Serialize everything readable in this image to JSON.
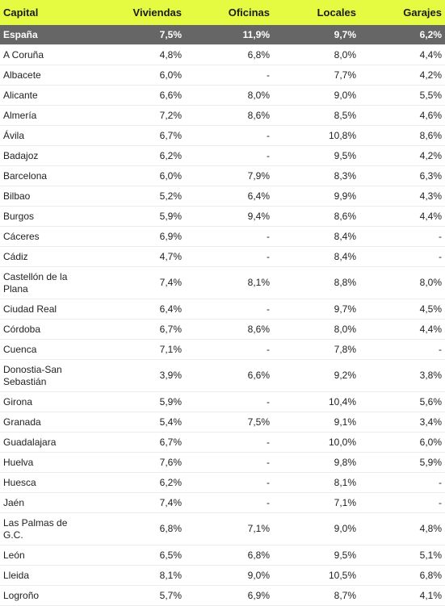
{
  "headers": [
    "Capital",
    "Viviendas",
    "Oficinas",
    "Locales",
    "Garajes"
  ],
  "total": {
    "name": "España",
    "values": [
      "7,5%",
      "11,9%",
      "9,7%",
      "6,2%"
    ]
  },
  "rows": [
    {
      "name": "A Coruña",
      "values": [
        "4,8%",
        "6,8%",
        "8,0%",
        "4,4%"
      ]
    },
    {
      "name": "Albacete",
      "values": [
        "6,0%",
        "-",
        "7,7%",
        "4,2%"
      ]
    },
    {
      "name": "Alicante",
      "values": [
        "6,6%",
        "8,0%",
        "9,0%",
        "5,5%"
      ]
    },
    {
      "name": "Almería",
      "values": [
        "7,2%",
        "8,6%",
        "8,5%",
        "4,6%"
      ]
    },
    {
      "name": "Ávila",
      "values": [
        "6,7%",
        "-",
        "10,8%",
        "8,6%"
      ]
    },
    {
      "name": "Badajoz",
      "values": [
        "6,2%",
        "-",
        "9,5%",
        "4,2%"
      ]
    },
    {
      "name": "Barcelona",
      "values": [
        "6,0%",
        "7,9%",
        "8,3%",
        "6,3%"
      ]
    },
    {
      "name": "Bilbao",
      "values": [
        "5,2%",
        "6,4%",
        "9,9%",
        "4,3%"
      ]
    },
    {
      "name": "Burgos",
      "values": [
        "5,9%",
        "9,4%",
        "8,6%",
        "4,4%"
      ]
    },
    {
      "name": "Cáceres",
      "values": [
        "6,9%",
        "-",
        "8,4%",
        "-"
      ]
    },
    {
      "name": "Cádiz",
      "values": [
        "4,7%",
        "-",
        "8,4%",
        "-"
      ]
    },
    {
      "name": "Castellón de la Plana",
      "values": [
        "7,4%",
        "8,1%",
        "8,8%",
        "8,0%"
      ]
    },
    {
      "name": "Ciudad Real",
      "values": [
        "6,4%",
        "-",
        "9,7%",
        "4,5%"
      ]
    },
    {
      "name": "Córdoba",
      "values": [
        "6,7%",
        "8,6%",
        "8,0%",
        "4,4%"
      ]
    },
    {
      "name": "Cuenca",
      "values": [
        "7,1%",
        "-",
        "7,8%",
        "-"
      ]
    },
    {
      "name": "Donostia-San Sebastián",
      "values": [
        "3,9%",
        "6,6%",
        "9,2%",
        "3,8%"
      ]
    },
    {
      "name": "Girona",
      "values": [
        "5,9%",
        "-",
        "10,4%",
        "5,6%"
      ]
    },
    {
      "name": "Granada",
      "values": [
        "5,4%",
        "7,5%",
        "9,1%",
        "3,4%"
      ]
    },
    {
      "name": "Guadalajara",
      "values": [
        "6,7%",
        "-",
        "10,0%",
        "6,0%"
      ]
    },
    {
      "name": "Huelva",
      "values": [
        "7,6%",
        "-",
        "9,8%",
        "5,9%"
      ]
    },
    {
      "name": "Huesca",
      "values": [
        "6,2%",
        "-",
        "8,1%",
        "-"
      ]
    },
    {
      "name": "Jaén",
      "values": [
        "7,4%",
        "-",
        "7,1%",
        "-"
      ]
    },
    {
      "name": "Las Palmas de G.C.",
      "values": [
        "6,8%",
        "7,1%",
        "9,0%",
        "4,8%"
      ]
    },
    {
      "name": "León",
      "values": [
        "6,5%",
        "6,8%",
        "9,5%",
        "5,1%"
      ]
    },
    {
      "name": "Lleida",
      "values": [
        "8,1%",
        "9,0%",
        "10,5%",
        "6,8%"
      ]
    },
    {
      "name": "Logroño",
      "values": [
        "5,7%",
        "6,9%",
        "8,7%",
        "4,1%"
      ]
    }
  ]
}
